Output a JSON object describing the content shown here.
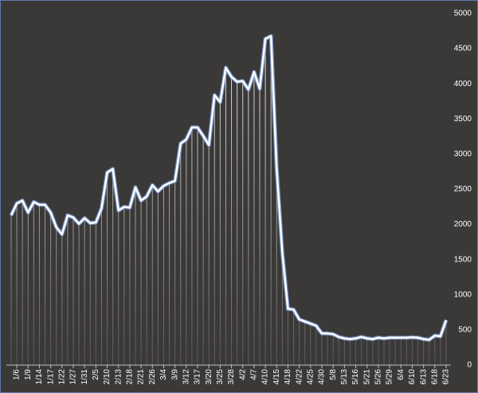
{
  "chart_data": {
    "type": "line",
    "categories": [
      null,
      "1/6",
      null,
      "1/9",
      null,
      "1/14",
      null,
      "1/17",
      null,
      "1/22",
      null,
      "1/27",
      null,
      "1/31",
      null,
      "2/5",
      null,
      "2/10",
      null,
      "2/13",
      null,
      "2/18",
      null,
      "2/21",
      null,
      "2/26",
      null,
      "3/4",
      null,
      "3/9",
      null,
      "3/12",
      null,
      "3/17",
      null,
      "3/20",
      null,
      "3/25",
      null,
      "3/28",
      null,
      "4/2",
      null,
      "4/7",
      null,
      "4/10",
      null,
      "4/15",
      null,
      "4/18",
      null,
      "4/22",
      null,
      "4/25",
      null,
      "4/30",
      null,
      "5/8",
      null,
      "5/13",
      null,
      "5/16",
      null,
      "5/21",
      null,
      "5/26",
      null,
      "5/29",
      null,
      "6/4",
      null,
      "6/10",
      null,
      "6/13",
      null,
      "6/18",
      null,
      "6/23"
    ],
    "values": [
      2130,
      2300,
      2340,
      2170,
      2320,
      2280,
      2280,
      2170,
      1960,
      1860,
      2130,
      2100,
      2010,
      2090,
      2020,
      2030,
      2230,
      2740,
      2790,
      2200,
      2250,
      2240,
      2530,
      2340,
      2400,
      2560,
      2470,
      2550,
      2590,
      2620,
      3150,
      3210,
      3380,
      3380,
      3260,
      3130,
      3840,
      3740,
      4230,
      4100,
      4030,
      4040,
      3920,
      4170,
      3930,
      4640,
      4680,
      2800,
      1600,
      800,
      790,
      650,
      620,
      590,
      560,
      450,
      450,
      440,
      400,
      380,
      370,
      380,
      400,
      380,
      370,
      390,
      380,
      390,
      390,
      390,
      390,
      395,
      390,
      370,
      360,
      420,
      410,
      640
    ],
    "color": "#ffffff",
    "ylim": [
      0,
      5000
    ],
    "yticks": [
      0,
      500,
      1000,
      1500,
      2000,
      2500,
      3000,
      3500,
      4000,
      4500,
      5000
    ],
    "drop_lines": true
  }
}
